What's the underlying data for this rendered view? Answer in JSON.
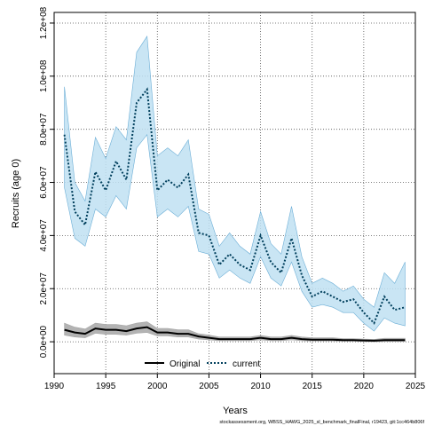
{
  "chart_data": {
    "type": "line",
    "xlabel": "Years",
    "ylabel": "Recruits (age 0)",
    "xlim": [
      1990,
      2025
    ],
    "ylim": [
      -12000000.0,
      124000000.0
    ],
    "x_ticks": [
      1990,
      1995,
      2000,
      2005,
      2010,
      2015,
      2020,
      2025
    ],
    "x_tick_labels": [
      "1990",
      "1995",
      "2000",
      "2005",
      "2010",
      "2015",
      "2020",
      "2025"
    ],
    "y_ticks": [
      0,
      20000000,
      40000000,
      60000000,
      80000000,
      100000000,
      120000000
    ],
    "y_tick_labels": [
      "0.0e+00",
      "2.0e+07",
      "4.0e+07",
      "6.0e+07",
      "8.0e+07",
      "1.0e+08",
      "1.2e+08"
    ],
    "grid": true,
    "legend_position": "bottom-center",
    "x": [
      1991,
      1992,
      1993,
      1994,
      1995,
      1996,
      1997,
      1998,
      1999,
      2000,
      2001,
      2002,
      2003,
      2004,
      2005,
      2006,
      2007,
      2008,
      2009,
      2010,
      2011,
      2012,
      2013,
      2014,
      2015,
      2016,
      2017,
      2018,
      2019,
      2020,
      2021,
      2022,
      2023,
      2024
    ],
    "series": [
      {
        "name": "Original",
        "color": "#000000",
        "band_color": "#a6a6a6",
        "line_style": "solid",
        "values": [
          4500000.0,
          3500000.0,
          3000000.0,
          5000000.0,
          4500000.0,
          4500000.0,
          4000000.0,
          5000000.0,
          5500000.0,
          3500000.0,
          3500000.0,
          3000000.0,
          3000000.0,
          2000000.0,
          1500000.0,
          1000000.0,
          1000000.0,
          1000000.0,
          1000000.0,
          1500000.0,
          1000000.0,
          1000000.0,
          1500000.0,
          1000000.0,
          800000.0,
          800000.0,
          800000.0,
          600000.0,
          600000.0,
          500000.0,
          400000.0,
          600000.0,
          600000.0,
          600000.0
        ],
        "lower": [
          2500000.0,
          1800000.0,
          1500000.0,
          3200000.0,
          2800000.0,
          2800000.0,
          2500000.0,
          3200000.0,
          3500000.0,
          2200000.0,
          2200000.0,
          1800000.0,
          1800000.0,
          1000000.0,
          700000.0,
          400000.0,
          400000.0,
          400000.0,
          400000.0,
          700000.0,
          400000.0,
          400000.0,
          700000.0,
          400000.0,
          300000.0,
          300000.0,
          300000.0,
          200000.0,
          200000.0,
          100000.0,
          0,
          100000.0,
          100000.0,
          100000.0
        ],
        "upper": [
          7000000.0,
          5500000.0,
          4800000.0,
          7000000.0,
          6500000.0,
          6500000.0,
          6000000.0,
          7000000.0,
          7500000.0,
          5000000.0,
          5000000.0,
          4500000.0,
          4500000.0,
          3000000.0,
          2500000.0,
          1800000.0,
          1800000.0,
          1800000.0,
          1800000.0,
          2400000.0,
          1800000.0,
          1800000.0,
          2400000.0,
          1800000.0,
          1500000.0,
          1500000.0,
          1500000.0,
          1200000.0,
          1200000.0,
          1000000.0,
          900000.0,
          1300000.0,
          1300000.0,
          1300000.0
        ]
      },
      {
        "name": "current",
        "color": "#003f5c",
        "band_color": "#bfe0f2",
        "band_edge_color": "#6baed6",
        "line_style": "dotted",
        "values": [
          78000000.0,
          49000000.0,
          44000000.0,
          64000000.0,
          57000000.0,
          68000000.0,
          61000000.0,
          90000000.0,
          95000000.0,
          57000000.0,
          61000000.0,
          58000000.0,
          63000000.0,
          41000000.0,
          40000000.0,
          29000000.0,
          33000000.0,
          29000000.0,
          27000000.0,
          40000000.0,
          30000000.0,
          26000000.0,
          39000000.0,
          25000000.0,
          17000000.0,
          19000000.0,
          17000000.0,
          15000000.0,
          16000000.0,
          11000000.0,
          7000000.0,
          17000000.0,
          12000000.0,
          13000000.0
        ],
        "lower": [
          58000000.0,
          39000000.0,
          36000000.0,
          50000000.0,
          47000000.0,
          55000000.0,
          50000000.0,
          73000000.0,
          78000000.0,
          47000000.0,
          50000000.0,
          47000000.0,
          51000000.0,
          34000000.0,
          33000000.0,
          24000000.0,
          27000000.0,
          24000000.0,
          22000000.0,
          32000000.0,
          24000000.0,
          21000000.0,
          30000000.0,
          19000000.0,
          13000000.0,
          14000000.0,
          13000000.0,
          11000000.0,
          11000000.0,
          7000000.0,
          4000000.0,
          9000000.0,
          7000000.0,
          6000000.0
        ],
        "upper": [
          96000000.0,
          60000000.0,
          53000000.0,
          77000000.0,
          69000000.0,
          81000000.0,
          76000000.0,
          109000000.0,
          115000000.0,
          70000000.0,
          73000000.0,
          70000000.0,
          76000000.0,
          50000000.0,
          48000000.0,
          36000000.0,
          41000000.0,
          36000000.0,
          33000000.0,
          49000000.0,
          37000000.0,
          33000000.0,
          51000000.0,
          32000000.0,
          22000000.0,
          24000000.0,
          22000000.0,
          19000000.0,
          21000000.0,
          16000000.0,
          13000000.0,
          26000000.0,
          22000000.0,
          30000000.0
        ]
      }
    ]
  },
  "footer": "stockassessment.org, WBSS_HAWG_2025_sl_benchmark_finalFinal, r19423, git:1cc464b806f"
}
